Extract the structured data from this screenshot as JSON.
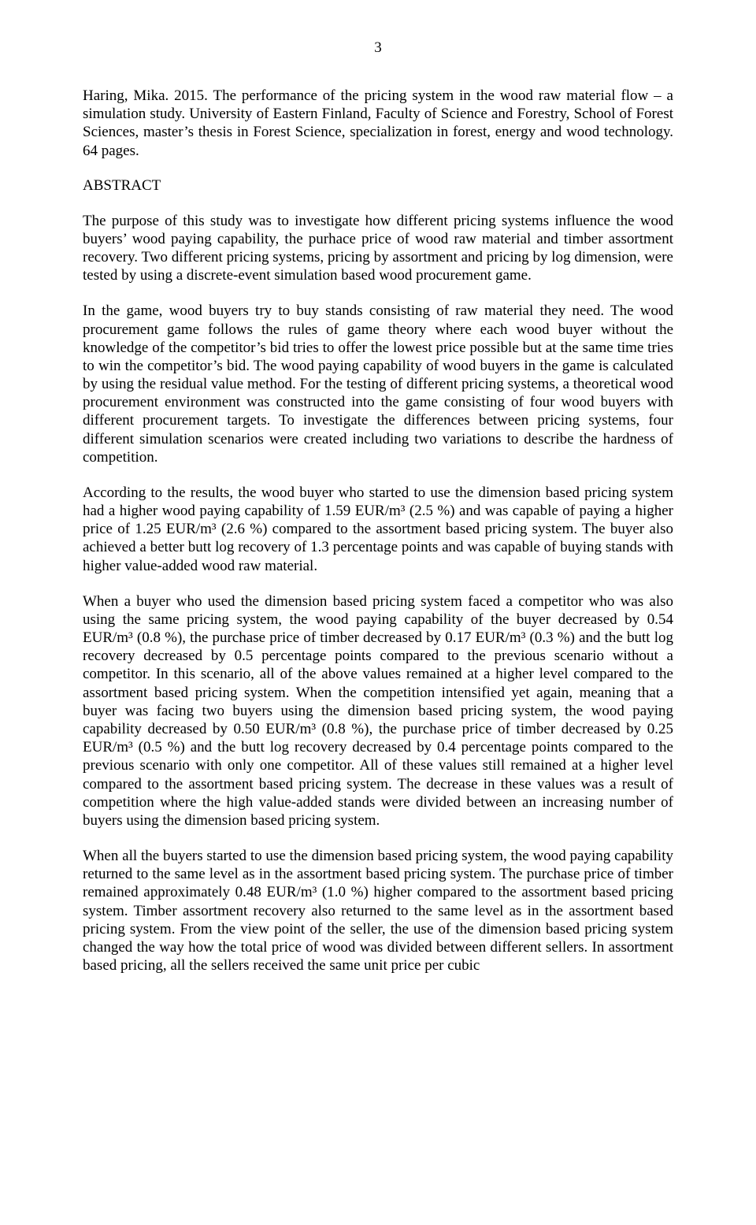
{
  "pageNumber": "3",
  "citation": "Haring, Mika. 2015. The performance of the pricing system in the wood raw material flow – a simulation study. University of Eastern Finland, Faculty of Science and Forestry, School of Forest Sciences, master’s thesis in Forest Science, specialization in forest, energy and wood technology. 64 pages.",
  "abstractHeading": "ABSTRACT",
  "paragraphs": {
    "p1": "The purpose of this study was to investigate how different pricing systems influence the wood buyers’ wood paying capability, the purhace price of wood raw material and timber assortment recovery. Two different pricing systems, pricing by assortment and pricing by log dimension, were tested by using a discrete-event simulation based wood procurement game.",
    "p2": "In the game, wood buyers try to buy stands consisting of raw material they need. The wood procurement game follows the rules of game theory where each wood buyer without the knowledge of the competitor’s bid tries to offer the lowest price possible but at the same time tries to win the competitor’s bid. The wood paying capability of wood buyers in the game is calculated by using the residual value method. For the testing of different pricing systems, a theoretical wood procurement environment was constructed into the game consisting of four wood buyers with different procurement targets. To investigate the differences between pricing systems, four different simulation scenarios were created including two variations to describe the hardness of competition.",
    "p3": "According to the results, the wood buyer who started to use the dimension based pricing system had a higher wood paying capability of 1.59 EUR/m³ (2.5 %) and was capable of paying a higher price of 1.25 EUR/m³ (2.6 %) compared to the assortment based pricing system. The buyer also achieved a better butt log recovery of 1.3 percentage points and was capable of buying stands with higher value-added wood raw material.",
    "p4": "When a buyer who used the dimension based pricing system faced a competitor who was also using the same pricing system, the wood paying capability of the buyer decreased by 0.54 EUR/m³ (0.8 %), the purchase price of timber decreased by 0.17 EUR/m³ (0.3 %) and the butt log recovery decreased by 0.5 percentage points compared to the previous scenario without a competitor. In this scenario, all of the above values remained at a higher level compared to the assortment based pricing system. When the competition intensified yet again, meaning that a buyer was facing two buyers using the dimension based pricing system, the wood paying capability decreased by 0.50 EUR/m³ (0.8 %), the purchase price of timber decreased by 0.25 EUR/m³ (0.5 %) and the butt log recovery decreased by 0.4 percentage points compared to the previous scenario with only one competitor. All of these values still remained at a higher level compared to the assortment based pricing system. The decrease in these values was a result of competition where the high value-added stands were divided between an increasing number of buyers using the dimension based pricing system.",
    "p5": "When all the buyers started to use the dimension based pricing system, the wood paying capability returned to the same level as in the assortment based pricing system. The purchase price of timber remained approximately 0.48 EUR/m³ (1.0 %) higher compared to the assortment based pricing system. Timber assortment recovery also returned to the same level as in the assortment based pricing system. From the view point of the seller, the use of the dimension based pricing system changed the way how the total price of wood was divided between different sellers. In assortment based pricing, all the sellers received the same unit price per cubic"
  }
}
